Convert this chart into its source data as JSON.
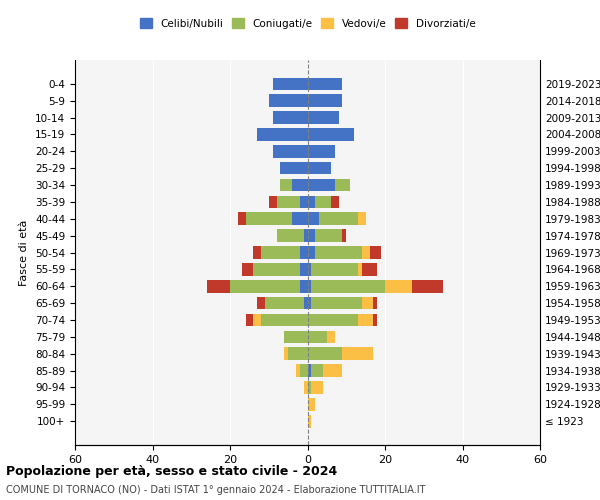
{
  "age_groups": [
    "100+",
    "95-99",
    "90-94",
    "85-89",
    "80-84",
    "75-79",
    "70-74",
    "65-69",
    "60-64",
    "55-59",
    "50-54",
    "45-49",
    "40-44",
    "35-39",
    "30-34",
    "25-29",
    "20-24",
    "15-19",
    "10-14",
    "5-9",
    "0-4"
  ],
  "birth_years": [
    "≤ 1923",
    "1924-1928",
    "1929-1933",
    "1934-1938",
    "1939-1943",
    "1944-1948",
    "1949-1953",
    "1954-1958",
    "1959-1963",
    "1964-1968",
    "1969-1973",
    "1974-1978",
    "1979-1983",
    "1984-1988",
    "1989-1993",
    "1994-1998",
    "1999-2003",
    "2004-2008",
    "2009-2013",
    "2014-2018",
    "2019-2023"
  ],
  "colors": {
    "celibi": "#4472C4",
    "coniugati": "#9BBB59",
    "vedovi": "#FBBF45",
    "divorziati": "#C0392B"
  },
  "male": {
    "celibi": [
      0,
      0,
      0,
      0,
      0,
      0,
      0,
      1,
      2,
      2,
      2,
      1,
      4,
      2,
      4,
      7,
      9,
      13,
      9,
      10,
      9
    ],
    "coniugati": [
      0,
      0,
      0,
      2,
      5,
      6,
      12,
      10,
      18,
      12,
      10,
      7,
      12,
      6,
      3,
      0,
      0,
      0,
      0,
      0,
      0
    ],
    "vedovi": [
      0,
      0,
      1,
      1,
      1,
      0,
      2,
      0,
      0,
      0,
      0,
      0,
      0,
      0,
      0,
      0,
      0,
      0,
      0,
      0,
      0
    ],
    "divorziati": [
      0,
      0,
      0,
      0,
      0,
      0,
      2,
      2,
      6,
      3,
      2,
      0,
      2,
      2,
      0,
      0,
      0,
      0,
      0,
      0,
      0
    ]
  },
  "female": {
    "celibi": [
      0,
      0,
      0,
      1,
      0,
      0,
      0,
      1,
      1,
      1,
      2,
      2,
      3,
      2,
      7,
      6,
      7,
      12,
      8,
      9,
      9
    ],
    "coniugati": [
      0,
      0,
      1,
      3,
      9,
      5,
      13,
      13,
      19,
      12,
      12,
      7,
      10,
      4,
      4,
      0,
      0,
      0,
      0,
      0,
      0
    ],
    "vedovi": [
      1,
      2,
      3,
      5,
      8,
      2,
      4,
      3,
      7,
      1,
      2,
      0,
      2,
      0,
      0,
      0,
      0,
      0,
      0,
      0,
      0
    ],
    "divorziati": [
      0,
      0,
      0,
      0,
      0,
      0,
      1,
      1,
      8,
      4,
      3,
      1,
      0,
      2,
      0,
      0,
      0,
      0,
      0,
      0,
      0
    ]
  },
  "xlim": 60,
  "title_main": "Popolazione per età, sesso e stato civile - 2024",
  "title_sub": "COMUNE DI TORNACO (NO) - Dati ISTAT 1° gennaio 2024 - Elaborazione TUTTITALIA.IT",
  "ylabel_left": "Fasce di età",
  "legend_labels": [
    "Celibi/Nubili",
    "Coniugati/e",
    "Vedovi/e",
    "Divorziati/e"
  ],
  "bg_color": "#FFFFFF",
  "plot_bg_color": "#F5F5F5"
}
